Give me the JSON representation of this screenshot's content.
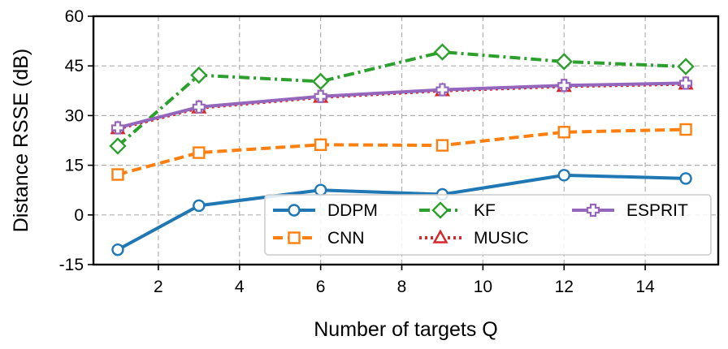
{
  "chart_data": {
    "type": "line",
    "title": "",
    "xlabel": "Number of targets Q",
    "ylabel": "Distance RSSE (dB)",
    "xlim": [
      0.4,
      15.8
    ],
    "ylim": [
      -15,
      60
    ],
    "xticks": [
      2,
      4,
      6,
      8,
      10,
      12,
      14
    ],
    "yticks": [
      -15,
      0,
      15,
      30,
      45,
      60
    ],
    "grid": true,
    "legend_position": "lower-right",
    "x": [
      1,
      3,
      6,
      9,
      12,
      15
    ],
    "series": [
      {
        "name": "DDPM",
        "color": "#1f77b4",
        "marker": "circle",
        "dash": "solid",
        "values": [
          -10.5,
          2.8,
          7.5,
          6.2,
          12.0,
          11.0
        ]
      },
      {
        "name": "CNN",
        "color": "#ff7f0e",
        "marker": "square",
        "dash": "dashed",
        "values": [
          12.2,
          18.8,
          21.2,
          21.0,
          25.0,
          25.8
        ]
      },
      {
        "name": "KF",
        "color": "#2ca02c",
        "marker": "diamond",
        "dash": "dashdot",
        "values": [
          20.8,
          42.2,
          40.3,
          49.2,
          46.3,
          44.8
        ]
      },
      {
        "name": "MUSIC",
        "color": "#d62728",
        "marker": "triangle",
        "dash": "dotted",
        "values": [
          26.0,
          32.3,
          35.5,
          37.5,
          38.8,
          39.5
        ]
      },
      {
        "name": "ESPRIT",
        "color": "#9467bd",
        "marker": "plus",
        "dash": "solid",
        "values": [
          26.3,
          32.6,
          35.8,
          37.8,
          39.1,
          39.8
        ]
      }
    ]
  }
}
